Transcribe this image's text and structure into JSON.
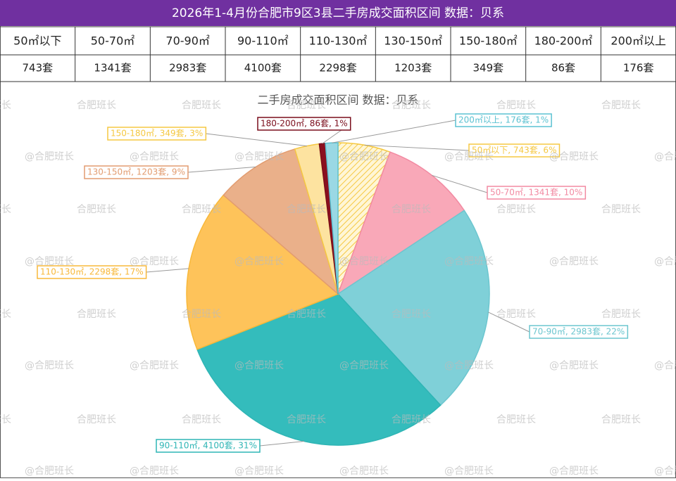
{
  "title": "2026年1-4月份合肥市9区3县二手房成交面积区间 数据：贝系",
  "table": {
    "header": [
      "50㎡以下",
      "50-70㎡",
      "70-90㎡",
      "90-110㎡",
      "110-130㎡",
      "130-150㎡",
      "150-180㎡",
      "180-200㎡",
      "200㎡以上"
    ],
    "rows": [
      [
        "743套",
        "1341套",
        "2983套",
        "4100套",
        "2298套",
        "1203套",
        "349套",
        "86套",
        "176套"
      ]
    ]
  },
  "watermarks": [
    "@合肥班长",
    "合肥班长"
  ],
  "chart_data": {
    "type": "pie",
    "title": "二手房成交面积区间 数据：贝系",
    "categories": [
      "50㎡以下",
      "50-70㎡",
      "70-90㎡",
      "90-110㎡",
      "110-130㎡",
      "130-150㎡",
      "150-180㎡",
      "180-200㎡",
      "200㎡以上"
    ],
    "values": [
      743,
      1341,
      2983,
      4100,
      2298,
      1203,
      349,
      86,
      176
    ],
    "value_labels": [
      "50㎡以下, 743套, 6%",
      "50-70㎡, 1341套, 10%",
      "70-90㎡, 2983套, 22%",
      "90-110㎡, 4100套, 31%",
      "110-130㎡, 2298套, 17%",
      "130-150㎡, 1203套, 9%",
      "150-180㎡, 349套, 3%",
      "180-200㎡, 86套, 1%",
      "200㎡以上, 176套, 1%"
    ],
    "colors": [
      "#fde9a6",
      "#f9a8b8",
      "#7fd0d8",
      "#34bcbc",
      "#fec35a",
      "#eab08a",
      "#fde3a0",
      "#8b0f1f",
      "#9ad8e4"
    ],
    "label_colors": [
      "#f5c842",
      "#f28aa2",
      "#6cc6cf",
      "#2fb5b5",
      "#f8b83a",
      "#e29c70",
      "#f5c842",
      "#7a0d1b",
      "#5cc2d2"
    ]
  }
}
